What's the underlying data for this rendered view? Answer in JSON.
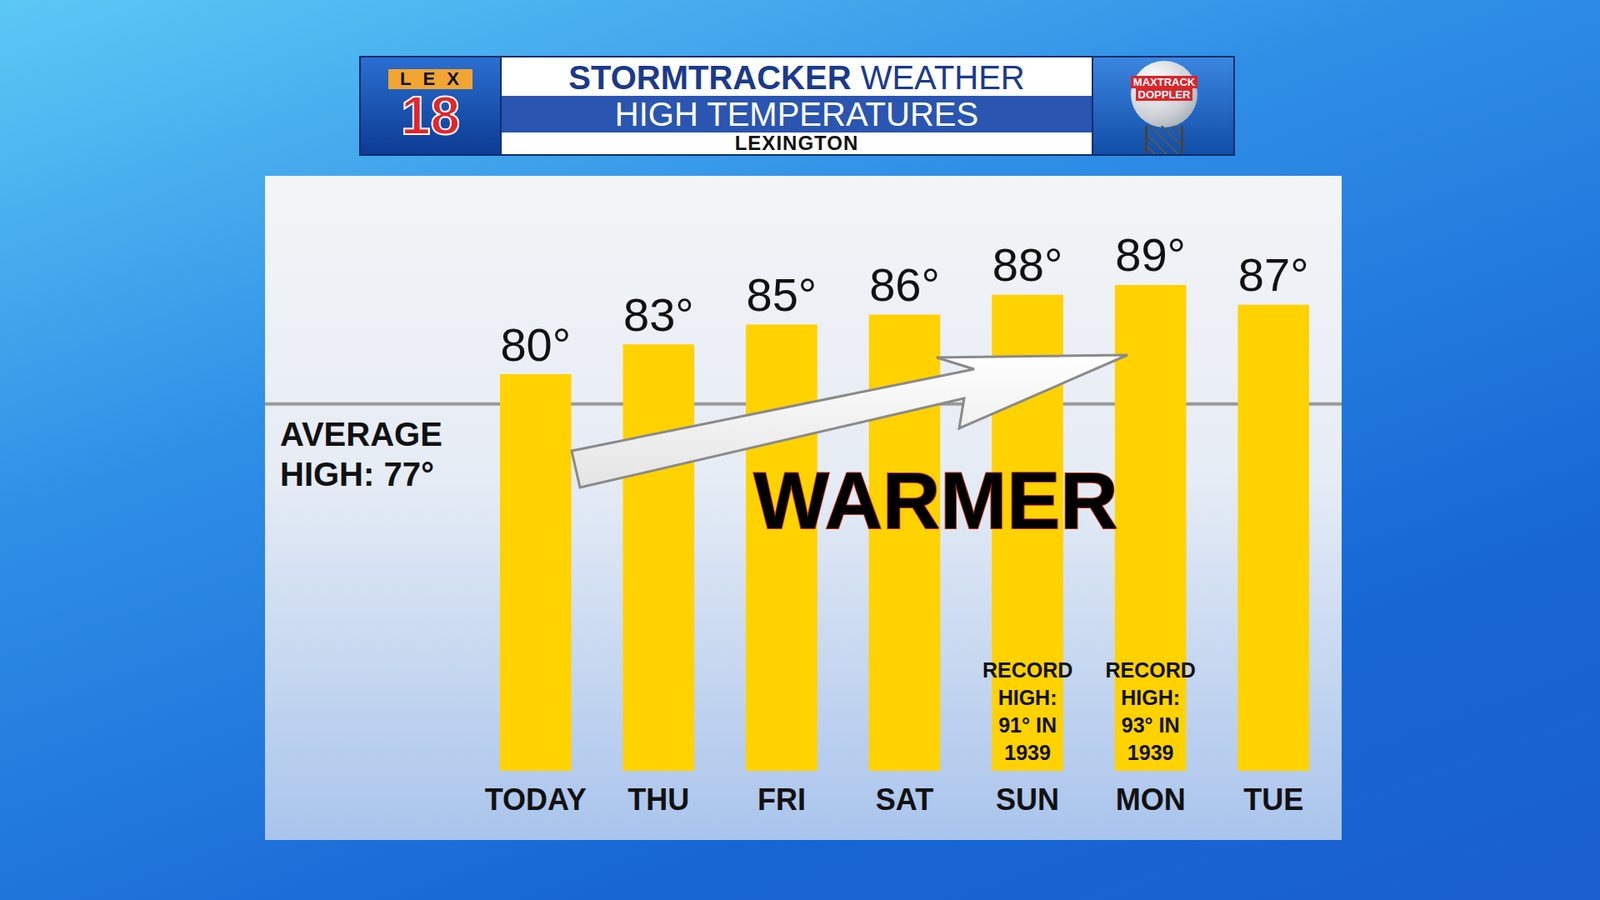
{
  "chart_data": {
    "type": "bar",
    "header": "STORMTRACKER WEATHER",
    "title": "HIGH TEMPERATURES",
    "subtitle": "LEXINGTON",
    "logo": "LEX 18",
    "radar_label": "MAXTRACK DOPPLER",
    "categories": [
      "TODAY",
      "THU",
      "FRI",
      "SAT",
      "SUN",
      "MON",
      "TUE"
    ],
    "values": [
      80,
      83,
      85,
      86,
      88,
      89,
      87
    ],
    "value_labels": [
      "80°",
      "83°",
      "85°",
      "86°",
      "88°",
      "89°",
      "87°"
    ],
    "color": "#ffd200",
    "ylim": [
      40,
      100
    ],
    "grid": false,
    "tick_labels": "x",
    "data_labels": true,
    "average": 77,
    "average_label": "AVERAGE HIGH: 77°",
    "annotation": "WARMER",
    "records": [
      {
        "category": "SUN",
        "label": "RECORD HIGH: 91° IN 1939"
      },
      {
        "category": "MON",
        "label": "RECORD HIGH: 93° IN 1939"
      }
    ]
  }
}
